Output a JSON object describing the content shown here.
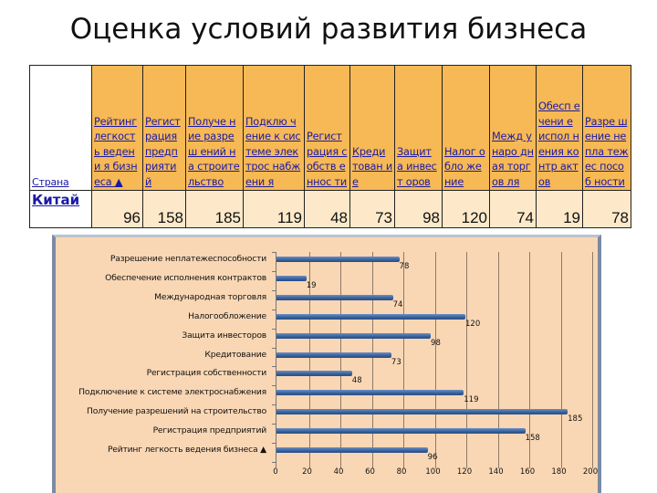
{
  "title": "Оценка условий развития бизнеса",
  "table": {
    "country_header": "Страна",
    "columns": [
      "Рейтинг легкость ведения бизнеса ▲",
      "Регистрация предприятий",
      "Получение разрешений на строительство",
      "Подключение к системе электроснабжения",
      "Регистрация собственности",
      "Кредитование",
      "Защита инвесторов",
      "Налогообложение",
      "Международная торговля",
      "Обеспечение исполнения контрактов",
      "Разрешение неплатежеспособности"
    ],
    "columns_wrapped": [
      "Рейтинг легкост ь ведени я бизнеса ▲",
      "Регист рация предп рияти й",
      "Получе ние разреш ений на строите льство",
      "Подклю чение к системе электрос набжени я",
      "Регист рация собств еннос ти",
      "Креди тован ие",
      "Защит а инвест оров",
      "Налог обло жение",
      "Межд унаро дная торгов ля",
      "Обесп ечени е испол нения контр актов",
      "Разре шение непла тежес пособ ности"
    ],
    "rows": [
      {
        "country": "Китай",
        "values": [
          "96",
          "158",
          "185",
          "119",
          "48",
          "73",
          "98",
          "120",
          "74",
          "19",
          "78"
        ]
      }
    ]
  },
  "chart_data": {
    "type": "bar",
    "orientation": "horizontal",
    "title": "",
    "xlabel": "",
    "ylabel": "",
    "xlim": [
      0,
      200
    ],
    "xticks": [
      0,
      20,
      40,
      60,
      80,
      100,
      120,
      140,
      160,
      180,
      200
    ],
    "grid": true,
    "legend": false,
    "categories": [
      "Разрешение неплатежеспособности",
      "Обеспечение исполнения контрактов",
      "Международная торговля",
      "Налогообложение",
      "Защита инвесторов",
      "Кредитование",
      "Регистрация собственности",
      "Подключение к системе электроснабжения",
      "Получение разрешений на строительство",
      "Регистрация предприятий",
      "Рейтинг легкость ведения бизнеса ▲"
    ],
    "values": [
      78,
      19,
      74,
      120,
      98,
      73,
      48,
      119,
      185,
      158,
      96
    ],
    "data_labels": [
      "78",
      "19",
      "74",
      "120",
      "98",
      "73",
      "48",
      "119",
      "185",
      "158",
      "96"
    ],
    "series": [
      {
        "name": "Китай",
        "values": [
          78,
          19,
          74,
          120,
          98,
          73,
          48,
          119,
          185,
          158,
          96
        ],
        "color": "#35609c"
      }
    ],
    "colors": {
      "background": "#fad7b4",
      "bar": "#35609c",
      "grid": "#8b7a6a"
    }
  }
}
